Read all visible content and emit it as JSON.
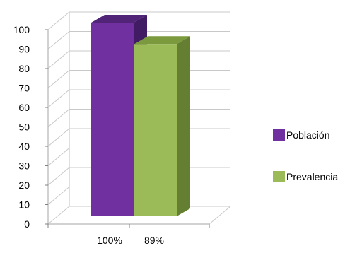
{
  "chart_data": {
    "type": "bar",
    "title": "",
    "xlabel": "",
    "ylabel": "",
    "ylim": [
      0,
      100
    ],
    "yticks": [
      0,
      10,
      20,
      30,
      40,
      50,
      60,
      70,
      80,
      90,
      100
    ],
    "grid": true,
    "legend_position": "right",
    "style": "3d-clustered-column",
    "categories": [
      ""
    ],
    "series": [
      {
        "name": "Población",
        "values": [
          100
        ],
        "color": "#7030A0",
        "top_color": "#512477",
        "side_color": "#411B63",
        "data_label": "100%"
      },
      {
        "name": "Prevalencia",
        "values": [
          89
        ],
        "color": "#9BBB59",
        "top_color": "#7A9A3D",
        "side_color": "#647F31",
        "data_label": "89%"
      }
    ]
  }
}
